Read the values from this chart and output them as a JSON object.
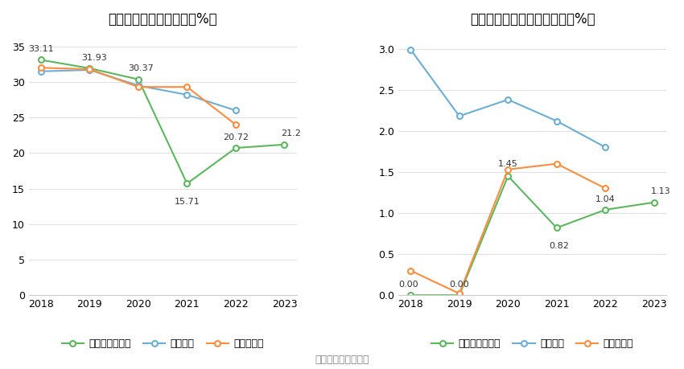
{
  "left_title": "近年来资产负债率情况（%）",
  "right_title": "近年来有息资产负债率情况（%）",
  "source_text": "数据来源：恒生聚源",
  "years": [
    2018,
    2019,
    2020,
    2021,
    2022,
    2023
  ],
  "left_company": [
    33.11,
    31.93,
    30.37,
    15.71,
    20.72,
    21.2
  ],
  "left_industry_mean": [
    31.5,
    31.7,
    29.5,
    28.2,
    26.0,
    null
  ],
  "left_industry_median": [
    32.0,
    31.8,
    29.3,
    29.3,
    24.0,
    null
  ],
  "right_company": [
    0.0,
    0.0,
    1.45,
    0.82,
    1.04,
    1.13
  ],
  "right_industry_mean": [
    2.99,
    2.18,
    2.38,
    2.12,
    1.8,
    null
  ],
  "right_industry_median": [
    0.3,
    0.02,
    1.53,
    1.6,
    1.3,
    null
  ],
  "left_ylim": [
    0,
    37
  ],
  "left_yticks": [
    0,
    5,
    10,
    15,
    20,
    25,
    30,
    35
  ],
  "right_ylim": [
    0,
    3.2
  ],
  "right_yticks": [
    0,
    0.5,
    1.0,
    1.5,
    2.0,
    2.5,
    3.0
  ],
  "color_company": "#5cb85c",
  "color_industry_mean": "#6baed6",
  "color_industry_median": "#fd8d3c",
  "left_labels": [
    "公司资产负债率",
    "行业均值",
    "行业中位数"
  ],
  "right_labels": [
    "有息资产负债率",
    "行业均值",
    "行业中位数"
  ],
  "left_annotate_indices": [
    0,
    1,
    2,
    3,
    4,
    5
  ],
  "left_annotate_values": [
    33.11,
    31.93,
    30.37,
    15.71,
    20.72,
    21.2
  ],
  "right_annotate_indices": [
    0,
    1,
    2,
    3,
    4,
    5
  ],
  "right_annotate_values": [
    0.0,
    0.0,
    1.45,
    0.82,
    1.04,
    1.13
  ],
  "bg_color": "#ffffff",
  "grid_color": "#e0e0e0",
  "title_fontsize": 12,
  "label_fontsize": 9,
  "annot_fontsize": 8,
  "legend_fontsize": 9,
  "source_fontsize": 9
}
